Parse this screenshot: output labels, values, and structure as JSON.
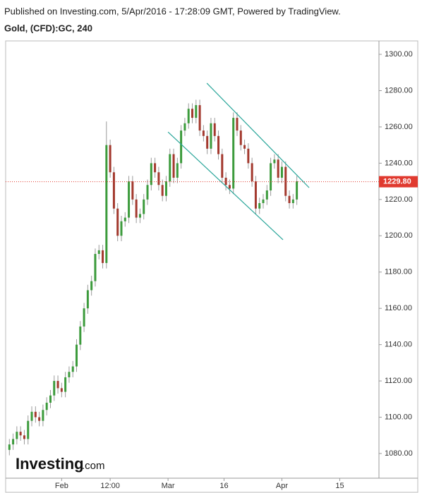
{
  "chart_data": {
    "type": "candlestick",
    "caption": "Published on Investing.com, 5/Apr/2016 - 17:28:09 GMT, Powered by TradingView.",
    "title": "Gold, (CFD):GC, 240",
    "brand": "Investing",
    "brand_suffix": ".com",
    "x": [
      0,
      1,
      2,
      3,
      4,
      5,
      6,
      7,
      8,
      9,
      10,
      11,
      12,
      13,
      14,
      15,
      16,
      17,
      18,
      19,
      20,
      21,
      22,
      23,
      24,
      25,
      26,
      27,
      28,
      29,
      30,
      31,
      32,
      33,
      34,
      35,
      36,
      37,
      38,
      39,
      40,
      41,
      42,
      43,
      44,
      45,
      46,
      47,
      48,
      49,
      50,
      51,
      52,
      53,
      54,
      55,
      56,
      57,
      58,
      59,
      60,
      61,
      62,
      63,
      64,
      65,
      66,
      67,
      68,
      69,
      70,
      71,
      72,
      73,
      74,
      75,
      76,
      77
    ],
    "open": [
      1082,
      1085,
      1088,
      1092,
      1090,
      1088,
      1098,
      1103,
      1100,
      1098,
      1104,
      1108,
      1112,
      1120,
      1116,
      1114,
      1122,
      1125,
      1128,
      1140,
      1150,
      1160,
      1170,
      1175,
      1190,
      1192,
      1185,
      1250,
      1235,
      1215,
      1200,
      1208,
      1210,
      1230,
      1220,
      1210,
      1212,
      1220,
      1228,
      1240,
      1235,
      1228,
      1222,
      1230,
      1245,
      1232,
      1240,
      1258,
      1262,
      1270,
      1265,
      1272,
      1258,
      1255,
      1248,
      1262,
      1255,
      1245,
      1232,
      1228,
      1226,
      1265,
      1258,
      1250,
      1248,
      1240,
      1230,
      1215,
      1218,
      1220,
      1225,
      1240,
      1242,
      1232,
      1238,
      1222,
      1218,
      1220
    ],
    "high": [
      1088,
      1091,
      1095,
      1095,
      1093,
      1101,
      1106,
      1106,
      1103,
      1107,
      1111,
      1115,
      1123,
      1123,
      1119,
      1125,
      1128,
      1131,
      1143,
      1153,
      1163,
      1173,
      1178,
      1193,
      1195,
      1195,
      1263,
      1253,
      1238,
      1218,
      1211,
      1213,
      1233,
      1233,
      1223,
      1215,
      1223,
      1231,
      1243,
      1243,
      1238,
      1231,
      1233,
      1248,
      1248,
      1243,
      1261,
      1265,
      1273,
      1273,
      1275,
      1275,
      1261,
      1258,
      1265,
      1265,
      1258,
      1248,
      1235,
      1231,
      1268,
      1268,
      1261,
      1253,
      1251,
      1243,
      1233,
      1221,
      1223,
      1228,
      1243,
      1245,
      1245,
      1241,
      1241,
      1225,
      1223,
      1233
    ],
    "low": [
      1079,
      1082,
      1085,
      1087,
      1085,
      1085,
      1095,
      1097,
      1095,
      1095,
      1101,
      1105,
      1109,
      1113,
      1111,
      1111,
      1119,
      1122,
      1125,
      1137,
      1147,
      1157,
      1167,
      1172,
      1187,
      1182,
      1182,
      1232,
      1212,
      1197,
      1197,
      1205,
      1207,
      1217,
      1207,
      1207,
      1209,
      1217,
      1225,
      1232,
      1225,
      1219,
      1219,
      1227,
      1229,
      1229,
      1237,
      1255,
      1259,
      1262,
      1262,
      1255,
      1252,
      1245,
      1245,
      1252,
      1242,
      1229,
      1225,
      1223,
      1223,
      1255,
      1247,
      1245,
      1237,
      1227,
      1212,
      1212,
      1215,
      1217,
      1222,
      1237,
      1229,
      1229,
      1219,
      1215,
      1215,
      1217
    ],
    "close": [
      1085,
      1088,
      1092,
      1090,
      1088,
      1098,
      1103,
      1100,
      1098,
      1104,
      1108,
      1112,
      1120,
      1116,
      1114,
      1122,
      1125,
      1128,
      1140,
      1150,
      1160,
      1170,
      1175,
      1190,
      1192,
      1185,
      1250,
      1235,
      1215,
      1200,
      1208,
      1210,
      1230,
      1220,
      1210,
      1212,
      1220,
      1228,
      1240,
      1235,
      1228,
      1222,
      1230,
      1245,
      1232,
      1240,
      1258,
      1262,
      1270,
      1265,
      1272,
      1258,
      1255,
      1248,
      1262,
      1255,
      1245,
      1232,
      1228,
      1226,
      1265,
      1258,
      1250,
      1248,
      1240,
      1230,
      1215,
      1218,
      1220,
      1225,
      1240,
      1242,
      1232,
      1238,
      1222,
      1218,
      1220,
      1230
    ],
    "up_color": "#3c9b3c",
    "down_color": "#a3392e",
    "wick_color": "#9a9a9a",
    "xlim": [
      -1,
      99
    ],
    "xticks": [
      {
        "value": 14,
        "label": "Feb"
      },
      {
        "value": 27,
        "label": "12:00"
      },
      {
        "value": 42.5,
        "label": "Mar"
      },
      {
        "value": 57.5,
        "label": "16"
      },
      {
        "value": 73,
        "label": "Apr"
      },
      {
        "value": 88.5,
        "label": "15"
      }
    ],
    "ylim": [
      1066.4,
      1307.4
    ],
    "yticks": [
      {
        "value": 1080,
        "label": "1080.00"
      },
      {
        "value": 1100,
        "label": "1100.00"
      },
      {
        "value": 1120,
        "label": "1120.00"
      },
      {
        "value": 1140,
        "label": "1140.00"
      },
      {
        "value": 1160,
        "label": "1160.00"
      },
      {
        "value": 1180,
        "label": "1180.00"
      },
      {
        "value": 1200,
        "label": "1200.00"
      },
      {
        "value": 1220,
        "label": "1220.00"
      },
      {
        "value": 1240,
        "label": "1240.00"
      },
      {
        "value": 1260,
        "label": "1260.00"
      },
      {
        "value": 1280,
        "label": "1280.00"
      },
      {
        "value": 1300,
        "label": "1300.00"
      }
    ],
    "last_price": {
      "value": 1229.8,
      "label": "1229.80",
      "color": "#e03a2f"
    },
    "trendlines": [
      {
        "x": [
          52.9,
          80.3
        ],
        "y": [
          1284.1,
          1226.5
        ]
      },
      {
        "x": [
          42.5,
          73.3
        ],
        "y": [
          1257.2,
          1197.8
        ]
      }
    ],
    "trendline_color": "#2aa69a"
  }
}
